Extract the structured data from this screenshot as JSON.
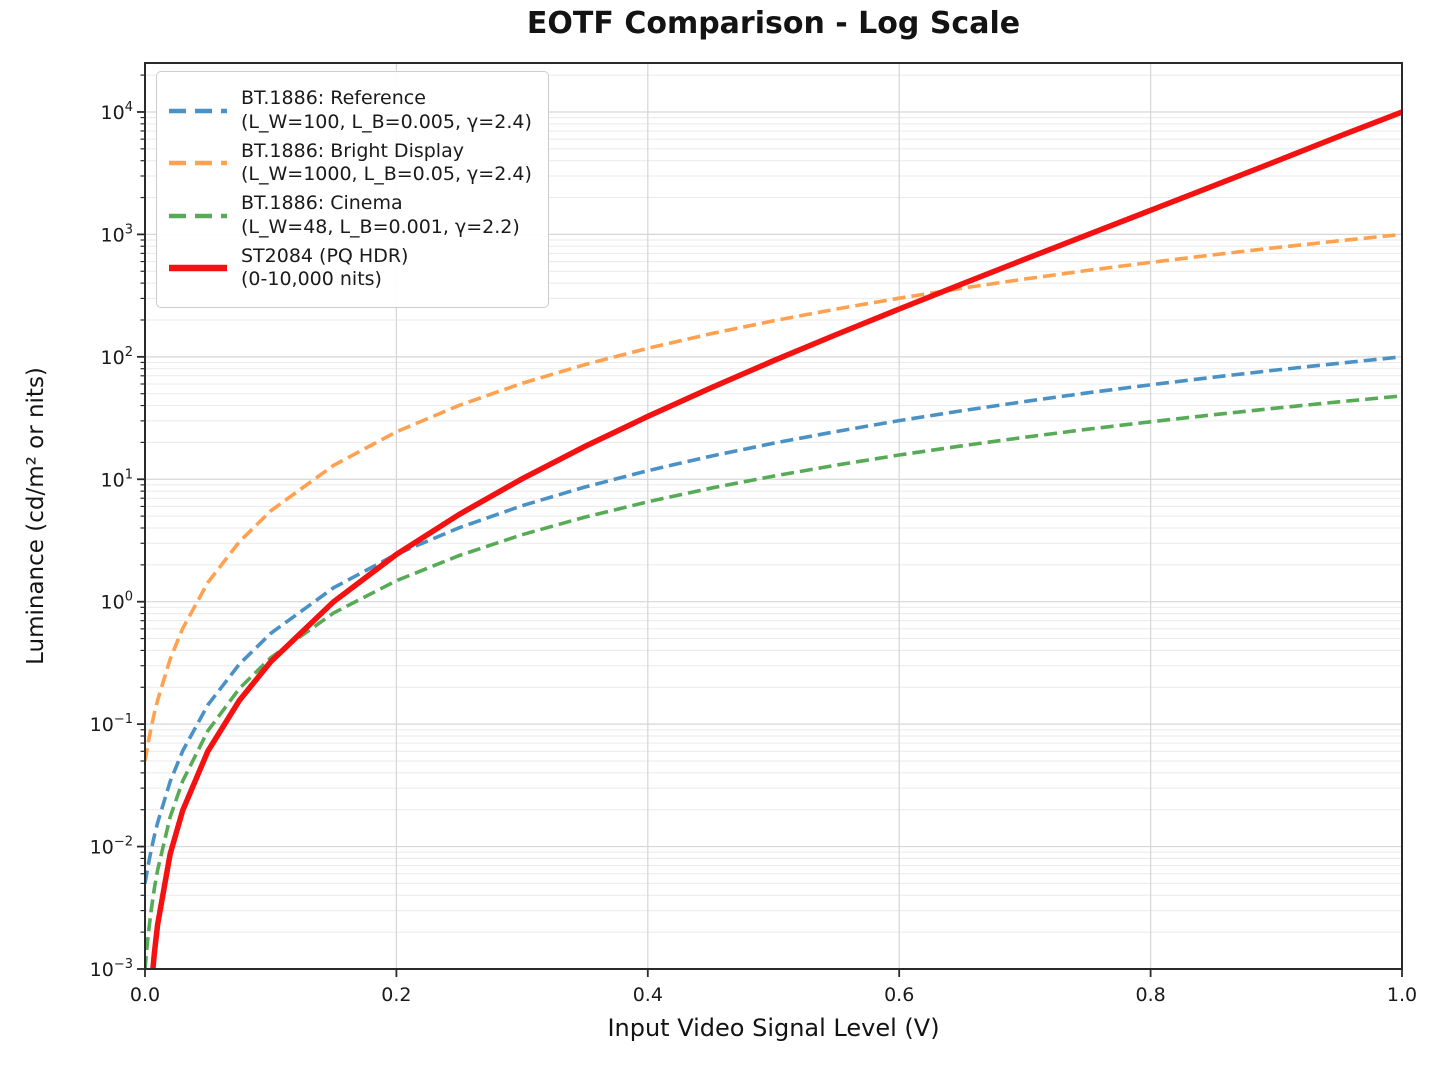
{
  "chart_data": {
    "type": "line",
    "title": "EOTF Comparison - Log Scale",
    "xlabel": "Input Video Signal Level (V)",
    "ylabel": "Luminance (cd/m² or nits)",
    "x_axis": {
      "min": 0.0,
      "max": 1.0,
      "ticks": [
        0.0,
        0.2,
        0.4,
        0.6,
        0.8,
        1.0
      ]
    },
    "y_axis": {
      "scale": "log",
      "min": 0.001,
      "max": 25000,
      "tick_exponents": [
        -3,
        -2,
        -1,
        0,
        1,
        2,
        3,
        4
      ]
    },
    "grid": "both",
    "legend_position": "upper left",
    "series": [
      {
        "label": "BT.1886: Reference",
        "sublabel": "(L_W=100, L_B=0.005, γ=2.4)",
        "color": "#4a91c6",
        "style": "dashed",
        "width": 3.6,
        "x": [
          0,
          0.001,
          0.0025,
          0.005,
          0.0075,
          0.01,
          0.02,
          0.03,
          0.05,
          0.075,
          0.1,
          0.15,
          0.2,
          0.25,
          0.3,
          0.35,
          0.4,
          0.45,
          0.5,
          0.55,
          0.6,
          0.65,
          0.7,
          0.75,
          0.8,
          0.85,
          0.9,
          0.95,
          1.0
        ],
        "y": [
          0.005,
          0.00575,
          0.00701,
          0.00945,
          0.01232,
          0.01565,
          0.03385,
          0.0605,
          0.1432,
          0.3086,
          0.5512,
          1.299,
          2.444,
          4.022,
          6.078,
          8.641,
          11.75,
          15.42,
          19.69,
          24.58,
          30.12,
          36.33,
          43.2,
          50.8,
          59.1,
          68.2,
          78.0,
          88.6,
          100.0
        ]
      },
      {
        "label": "BT.1886: Bright Display",
        "sublabel": "(L_W=1000, L_B=0.05, γ=2.4)",
        "color": "#ffa14e",
        "style": "dashed",
        "width": 3.6,
        "x": [
          0,
          0.001,
          0.0025,
          0.005,
          0.0075,
          0.01,
          0.02,
          0.03,
          0.05,
          0.075,
          0.1,
          0.15,
          0.2,
          0.25,
          0.3,
          0.35,
          0.4,
          0.45,
          0.5,
          0.55,
          0.6,
          0.65,
          0.7,
          0.75,
          0.8,
          0.85,
          0.9,
          0.95,
          1.0
        ],
        "y": [
          0.05,
          0.0575,
          0.0701,
          0.0945,
          0.1232,
          0.1565,
          0.3385,
          0.605,
          1.432,
          3.086,
          5.512,
          12.99,
          24.44,
          40.22,
          60.78,
          86.41,
          117.5,
          154.2,
          196.9,
          245.8,
          301.2,
          363.3,
          432.0,
          508.0,
          591.0,
          682.0,
          780.0,
          886.0,
          1000.0
        ]
      },
      {
        "label": "BT.1886: Cinema",
        "sublabel": "(L_W=48, L_B=0.001, γ=2.2)",
        "color": "#57ab57",
        "style": "dashed",
        "width": 3.6,
        "x": [
          0,
          0.001,
          0.0025,
          0.005,
          0.0075,
          0.01,
          0.02,
          0.03,
          0.05,
          0.075,
          0.1,
          0.15,
          0.2,
          0.25,
          0.3,
          0.35,
          0.4,
          0.45,
          0.5,
          0.55,
          0.6,
          0.65,
          0.7,
          0.75,
          0.8,
          0.85,
          0.9,
          0.95,
          1.0
        ],
        "y": [
          0.001,
          0.001316,
          0.001882,
          0.003068,
          0.00458,
          0.006424,
          0.01738,
          0.03434,
          0.08808,
          0.195,
          0.349,
          0.8092,
          1.483,
          2.383,
          3.525,
          4.908,
          6.551,
          8.448,
          10.61,
          13.05,
          15.77,
          18.76,
          22.05,
          25.62,
          29.49,
          33.66,
          38.12,
          42.9,
          48.0
        ]
      },
      {
        "label": "ST2084 (PQ HDR)",
        "sublabel": "(0-10,000 nits)",
        "color": "#f31111",
        "style": "solid",
        "width": 5.5,
        "x": [
          0.0063,
          0.0075,
          0.01,
          0.02,
          0.03,
          0.05,
          0.075,
          0.1,
          0.15,
          0.2,
          0.25,
          0.3,
          0.35,
          0.4,
          0.45,
          0.5,
          0.55,
          0.6,
          0.65,
          0.7,
          0.75,
          0.8,
          0.85,
          0.9,
          0.95,
          1.0
        ],
        "y": [
          0.001,
          0.00136,
          0.0023,
          0.00866,
          0.01974,
          0.06,
          0.156,
          0.323,
          0.998,
          2.434,
          5.17,
          10.09,
          18.55,
          32.6,
          55.7,
          93.0,
          152.2,
          246.0,
          394.0,
          627.0,
          994.0,
          1574.0,
          2493.0,
          3962.0,
          6323.0,
          10000.0
        ]
      }
    ],
    "style_colors": {
      "grid_major": "#d6d6d6",
      "grid_minor": "#eaeaea",
      "spine": "#2a2a2a",
      "tick_text": "#1a1a1a",
      "legend_border": "#cccccc"
    }
  }
}
